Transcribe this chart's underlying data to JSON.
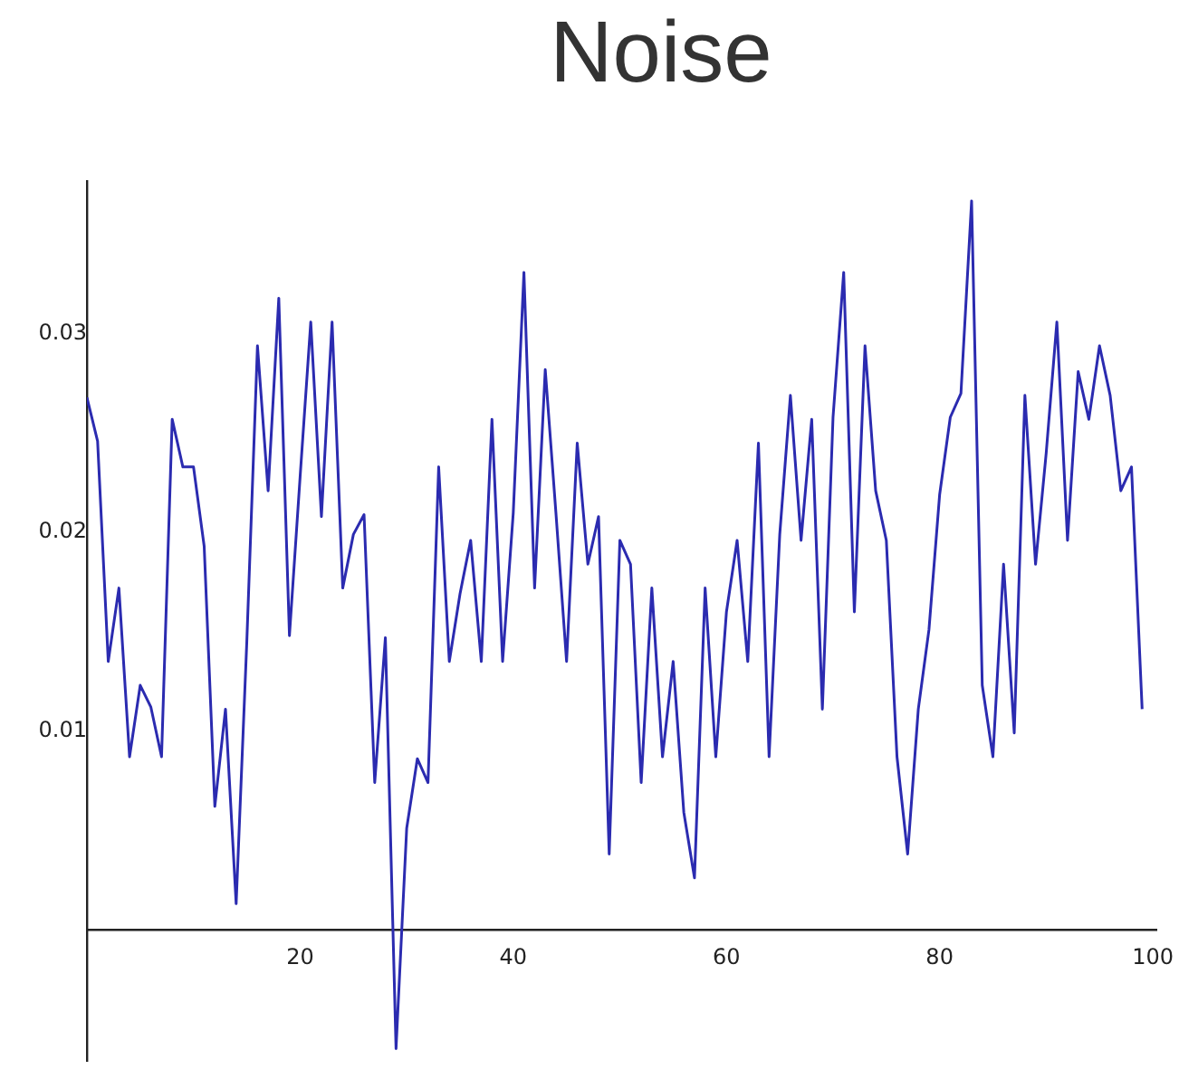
{
  "chart_data": {
    "type": "line",
    "title": "Noise",
    "x": [
      0,
      1,
      2,
      3,
      4,
      5,
      6,
      7,
      8,
      9,
      10,
      11,
      12,
      13,
      14,
      15,
      16,
      17,
      18,
      19,
      20,
      21,
      22,
      23,
      24,
      25,
      26,
      27,
      28,
      29,
      30,
      31,
      32,
      33,
      34,
      35,
      36,
      37,
      38,
      39,
      40,
      41,
      42,
      43,
      44,
      45,
      46,
      47,
      48,
      49,
      50,
      51,
      52,
      53,
      54,
      55,
      56,
      57,
      58,
      59,
      60,
      61,
      62,
      63,
      64,
      65,
      66,
      67,
      68,
      69,
      70,
      71,
      72,
      73,
      74,
      75,
      76,
      77,
      78,
      79,
      80,
      81,
      82,
      83,
      84,
      85,
      86,
      87,
      88,
      89,
      90,
      91,
      92,
      93,
      94,
      95,
      96,
      97,
      98,
      99
    ],
    "series": [
      {
        "color": "#2b2bb0",
        "values": [
          0.0268,
          0.0246,
          0.0135,
          0.0172,
          0.0087,
          0.0123,
          0.0112,
          0.0087,
          0.0257,
          0.0233,
          0.0233,
          0.0193,
          0.0062,
          0.0111,
          0.0013,
          0.0145,
          0.0294,
          0.0221,
          0.0318,
          0.0148,
          0.0228,
          0.0306,
          0.0208,
          0.0306,
          0.0172,
          0.0199,
          0.0209,
          0.0074,
          0.0147,
          -0.006,
          0.0051,
          0.0086,
          0.0074,
          0.0233,
          0.0135,
          0.0169,
          0.0196,
          0.0135,
          0.0257,
          0.0135,
          0.021,
          0.0331,
          0.0172,
          0.0282,
          0.021,
          0.0135,
          0.0245,
          0.0184,
          0.0208,
          0.0038,
          0.0196,
          0.0184,
          0.0074,
          0.0172,
          0.0087,
          0.0135,
          0.0059,
          0.0026,
          0.0172,
          0.0087,
          0.016,
          0.0196,
          0.0135,
          0.0245,
          0.0087,
          0.0199,
          0.0269,
          0.0196,
          0.0257,
          0.0111,
          0.0258,
          0.0331,
          0.016,
          0.0294,
          0.0221,
          0.0196,
          0.0087,
          0.0038,
          0.0111,
          0.0151,
          0.0219,
          0.0258,
          0.027,
          0.0367,
          0.0123,
          0.0087,
          0.0184,
          0.0099,
          0.0269,
          0.0184,
          0.024,
          0.0306,
          0.0196,
          0.0281,
          0.0257,
          0.0294,
          0.0269,
          0.0221,
          0.0233,
          0.0111
        ]
      }
    ],
    "xlim": [
      0,
      100.3
    ],
    "ylim": [
      -0.0066,
      0.0377
    ],
    "xticks": [
      20,
      40,
      60,
      80,
      100
    ],
    "yticks": [
      0.01,
      0.02,
      0.03
    ],
    "grid": false,
    "legend": false,
    "marker": "none",
    "line_style": "solid"
  }
}
